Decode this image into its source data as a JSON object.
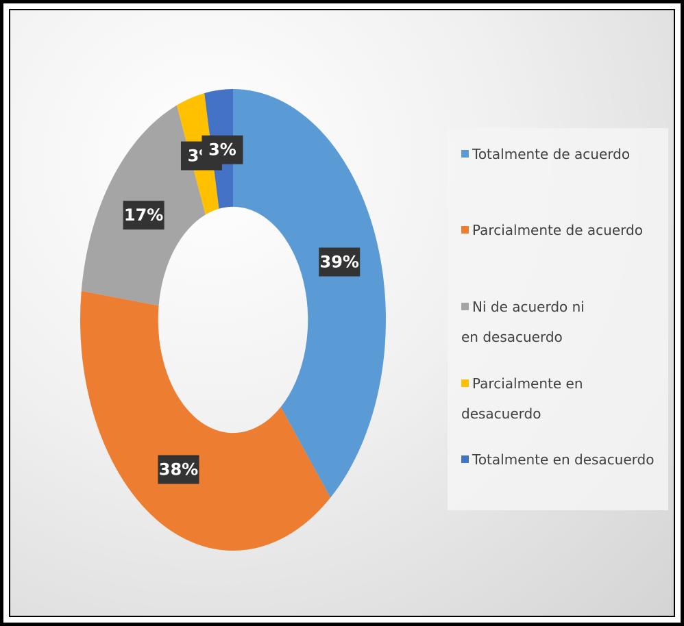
{
  "chart_data": {
    "type": "donut",
    "categories": [
      "Totalmente de acuerdo",
      "Parcialmente de acuerdo",
      "Ni de acuerdo ni en desacuerdo",
      "Parcialmente en desacuerdo",
      "Totalmente en desacuerdo"
    ],
    "values": [
      39,
      38,
      17,
      3,
      3
    ],
    "value_labels": [
      "39%",
      "38%",
      "17%",
      "3%",
      "3%"
    ],
    "colors": [
      "#5b9bd5",
      "#ed7d31",
      "#a5a5a5",
      "#ffc000",
      "#4472c4"
    ],
    "legend": "right"
  }
}
